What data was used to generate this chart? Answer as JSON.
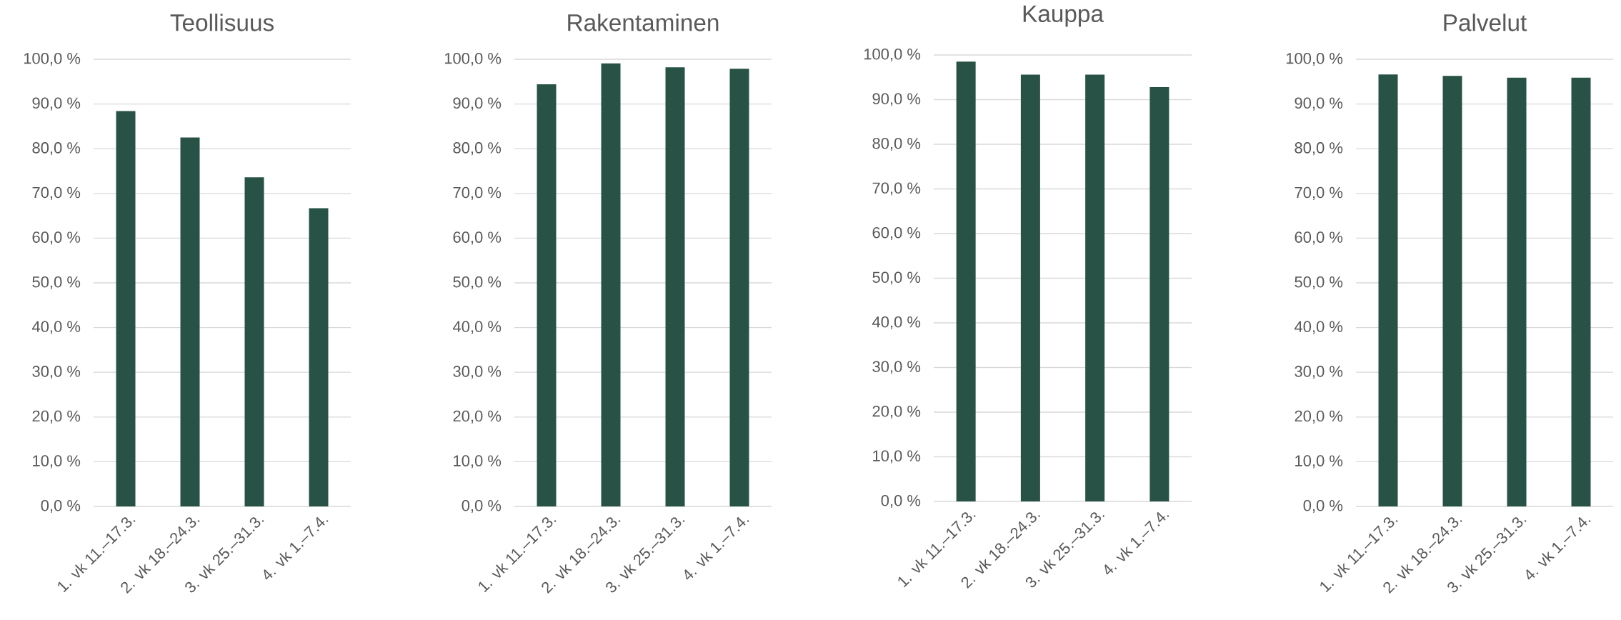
{
  "chart_data": [
    {
      "type": "bar",
      "title": "Teollisuus",
      "categories": [
        "1. vk 11.–17.3.",
        "2. vk 18.–24.3.",
        "3. vk 25.–31.3.",
        "4. vk 1.–7.4."
      ],
      "values": [
        88.4,
        82.5,
        73.6,
        66.7
      ],
      "color": "#275245",
      "ylim": [
        0,
        100
      ],
      "yticks": [
        {
          "value": 0,
          "label": "0,0 %"
        },
        {
          "value": 10,
          "label": "10,0 %"
        },
        {
          "value": 20,
          "label": "20,0 %"
        },
        {
          "value": 30,
          "label": "30,0 %"
        },
        {
          "value": 40,
          "label": "40,0 %"
        },
        {
          "value": 50,
          "label": "50,0 %"
        },
        {
          "value": 60,
          "label": "60,0 %"
        },
        {
          "value": 70,
          "label": "70,0 %"
        },
        {
          "value": 80,
          "label": "80,0 %"
        },
        {
          "value": 90,
          "label": "90,0 %"
        },
        {
          "value": 100,
          "label": "100,0 %"
        }
      ],
      "grid": "y"
    },
    {
      "type": "bar",
      "title": "Rakentaminen",
      "categories": [
        "1. vk 11.–17.3.",
        "2. vk 18.–24.3.",
        "3. vk 25.–31.3.",
        "4. vk 1.–7.4."
      ],
      "values": [
        94.4,
        99.1,
        98.2,
        97.9
      ],
      "color": "#275245",
      "ylim": [
        0,
        100
      ],
      "yticks": [
        {
          "value": 0,
          "label": "0,0 %"
        },
        {
          "value": 10,
          "label": "10,0 %"
        },
        {
          "value": 20,
          "label": "20,0 %"
        },
        {
          "value": 30,
          "label": "30,0 %"
        },
        {
          "value": 40,
          "label": "40,0 %"
        },
        {
          "value": 50,
          "label": "50,0 %"
        },
        {
          "value": 60,
          "label": "60,0 %"
        },
        {
          "value": 70,
          "label": "70,0 %"
        },
        {
          "value": 80,
          "label": "80,0 %"
        },
        {
          "value": 90,
          "label": "90,0 %"
        },
        {
          "value": 100,
          "label": "100,0 %"
        }
      ],
      "grid": "y"
    },
    {
      "type": "bar",
      "title": "Kauppa",
      "categories": [
        "1. vk 11.–17.3.",
        "2. vk 18.–24.3.",
        "3. vk 25.–31.3.",
        "4. vk 1.–7.4."
      ],
      "values": [
        98.5,
        95.6,
        95.6,
        92.8
      ],
      "color": "#275245",
      "ylim": [
        0,
        100
      ],
      "yticks": [
        {
          "value": 0,
          "label": "0,0 %"
        },
        {
          "value": 10,
          "label": "10,0 %"
        },
        {
          "value": 20,
          "label": "20,0 %"
        },
        {
          "value": 30,
          "label": "30,0 %"
        },
        {
          "value": 40,
          "label": "40,0 %"
        },
        {
          "value": 50,
          "label": "50,0 %"
        },
        {
          "value": 60,
          "label": "60,0 %"
        },
        {
          "value": 70,
          "label": "70,0 %"
        },
        {
          "value": 80,
          "label": "80,0 %"
        },
        {
          "value": 90,
          "label": "90,0 %"
        },
        {
          "value": 100,
          "label": "100,0 %"
        }
      ],
      "grid": "y"
    },
    {
      "type": "bar",
      "title": "Palvelut",
      "categories": [
        "1. vk 11.–17.3.",
        "2. vk 18.–24.3.",
        "3. vk 25.–31.3.",
        "4. vk 1.–7.4."
      ],
      "values": [
        96.6,
        96.3,
        95.9,
        95.9
      ],
      "color": "#275245",
      "ylim": [
        0,
        100
      ],
      "yticks": [
        {
          "value": 0,
          "label": "0,0 %"
        },
        {
          "value": 10,
          "label": "10,0 %"
        },
        {
          "value": 20,
          "label": "20,0 %"
        },
        {
          "value": 30,
          "label": "30,0 %"
        },
        {
          "value": 40,
          "label": "40,0 %"
        },
        {
          "value": 50,
          "label": "50,0 %"
        },
        {
          "value": 60,
          "label": "60,0 %"
        },
        {
          "value": 70,
          "label": "70,0 %"
        },
        {
          "value": 80,
          "label": "80,0 %"
        },
        {
          "value": 90,
          "label": "90,0 %"
        },
        {
          "value": 100,
          "label": "100,0 %"
        }
      ],
      "grid": "y"
    }
  ]
}
